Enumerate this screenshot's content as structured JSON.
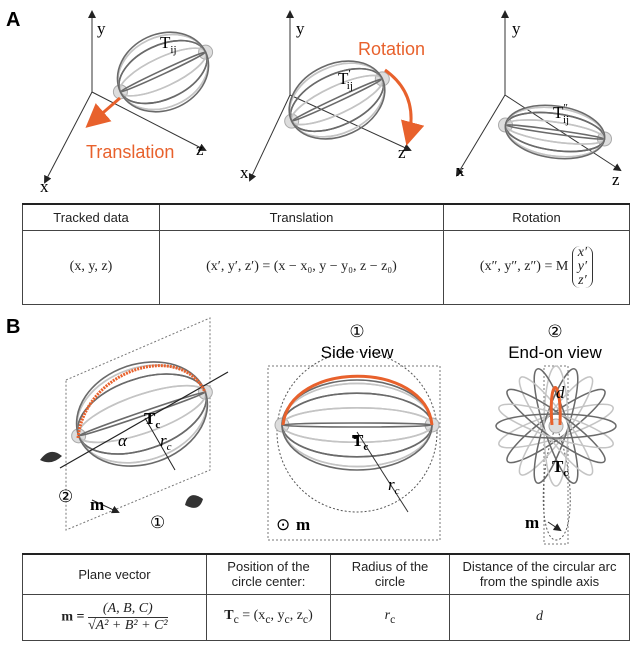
{
  "panel_a": {
    "label": "A",
    "diagrams": [
      {
        "y": "y",
        "x": "x",
        "z": "z",
        "point": {
          "base": "T",
          "sub": "ij"
        },
        "annotation": "Translation"
      },
      {
        "y": "y",
        "x": "x",
        "z": "z",
        "point": {
          "base": "T",
          "sup": "′",
          "sub": "ij"
        },
        "annotation": "Rotation"
      },
      {
        "y": "y",
        "x": "x",
        "z": "z",
        "point": {
          "base": "T",
          "sup": "″",
          "sub": "ij"
        }
      }
    ],
    "table": {
      "headers": [
        "Tracked data",
        "Translation",
        "Rotation"
      ],
      "row": [
        "(x, y, z)",
        "(x′, y′, z′) = (x − x₀, y − y₀, z − z₀)",
        "(x″, y″, z″) = M"
      ],
      "vector": [
        "x′",
        "y′",
        "z′"
      ]
    }
  },
  "panel_b": {
    "label": "B",
    "left": {
      "alpha": "α",
      "center": [
        "T",
        "c"
      ],
      "radius": [
        "r",
        "c"
      ],
      "view_two": "②",
      "vector": "m",
      "view_one": "①"
    },
    "side": {
      "number": "①",
      "title": "Side view",
      "center": [
        "T",
        "c"
      ],
      "radius": [
        "r",
        "c"
      ],
      "dot": "⊙",
      "vector": "m"
    },
    "end": {
      "number": "②",
      "title": "End-on view",
      "distance": "d",
      "center": [
        "T",
        "c"
      ],
      "vector": "m"
    },
    "table": {
      "headers": [
        "Plane vector",
        "Position of the circle center:",
        "Radius of the circle",
        "Distance of the circular arc from the spindle axis"
      ],
      "plane": [
        "m =",
        "(A, B, C)",
        "√A² + B² + C²"
      ],
      "center": [
        "T",
        "c",
        " = (x",
        "c",
        ", y",
        "c",
        ", z",
        "c",
        ")"
      ],
      "radius": [
        "r",
        "c"
      ],
      "distance": "d"
    }
  }
}
